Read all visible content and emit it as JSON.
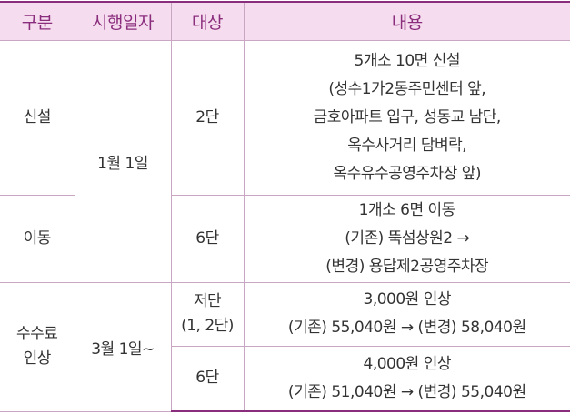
{
  "table": {
    "header": [
      "구분",
      "시행일자",
      "대상",
      "내용"
    ],
    "rows": [
      {
        "category": [
          "신설"
        ],
        "date": "1월 1일",
        "target": [
          "2단"
        ],
        "content": [
          "5개소 10면 신설",
          "(성수1가2동주민센터 앞,",
          "금호아파트 입구, 성동교 남단,",
          "옥수사거리 담벼락,",
          "옥수유수공영주차장 앞)"
        ]
      },
      {
        "category": [
          "이동"
        ],
        "target": [
          "6단"
        ],
        "content": [
          "1개소 6면 이동",
          "(기존) 뚝섬상원2 →",
          "(변경) 용답제2공영주차장"
        ]
      },
      {
        "category": [
          "수수료",
          "인상"
        ],
        "date": "3월 1일~",
        "target": [
          "저단",
          "(1, 2단)"
        ],
        "content": [
          "3,000원 인상",
          "(기존) 55,040원 → (변경) 58,040원"
        ]
      },
      {
        "target": [
          "6단"
        ],
        "content": [
          "4,000원 인상",
          "(기존) 51,040원 → (변경) 55,040원"
        ]
      }
    ]
  }
}
